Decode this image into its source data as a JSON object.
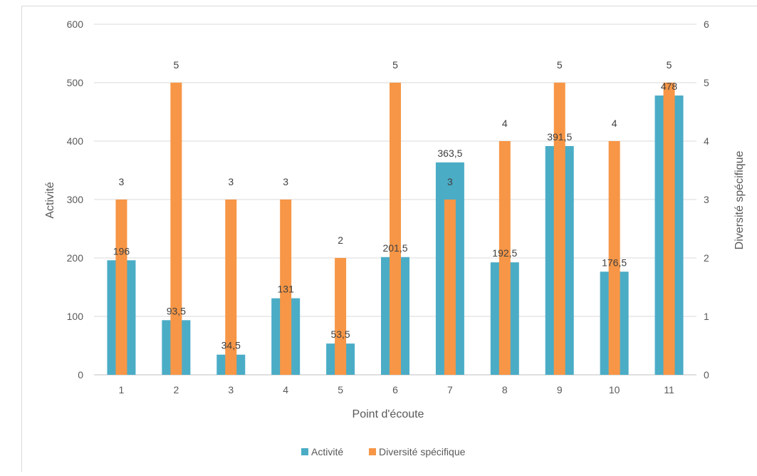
{
  "chart_data": {
    "type": "bar",
    "categories": [
      "1",
      "2",
      "3",
      "4",
      "5",
      "6",
      "7",
      "8",
      "9",
      "10",
      "11"
    ],
    "series": [
      {
        "name": "Activité",
        "axis": "left",
        "color": "#4bacc6",
        "values": [
          196,
          93.5,
          34.5,
          131,
          53.5,
          201.5,
          363.5,
          192.5,
          391.5,
          176.5,
          478
        ],
        "labels": [
          "196",
          "93,5",
          "34,5",
          "131",
          "53,5",
          "201,5",
          "363,5",
          "192,5",
          "391,5",
          "176,5",
          "478"
        ]
      },
      {
        "name": "Diversité spécifique",
        "axis": "right",
        "color": "#f79646",
        "values": [
          3,
          5,
          3,
          3,
          2,
          5,
          3,
          4,
          5,
          4,
          5
        ],
        "labels": [
          "3",
          "5",
          "3",
          "3",
          "2",
          "5",
          "3",
          "4",
          "5",
          "4",
          "5"
        ]
      }
    ],
    "xlabel": "Point d'écoute",
    "ylabel": "Activité",
    "y2label": "Diversité spécifique",
    "ylim": [
      0,
      600
    ],
    "y2lim": [
      0,
      6
    ],
    "yticks": [
      "0",
      "100",
      "200",
      "300",
      "400",
      "500",
      "600"
    ],
    "y2ticks": [
      "0",
      "1",
      "2",
      "3",
      "4",
      "5",
      "6"
    ],
    "grid": true,
    "legend": "bottom"
  }
}
